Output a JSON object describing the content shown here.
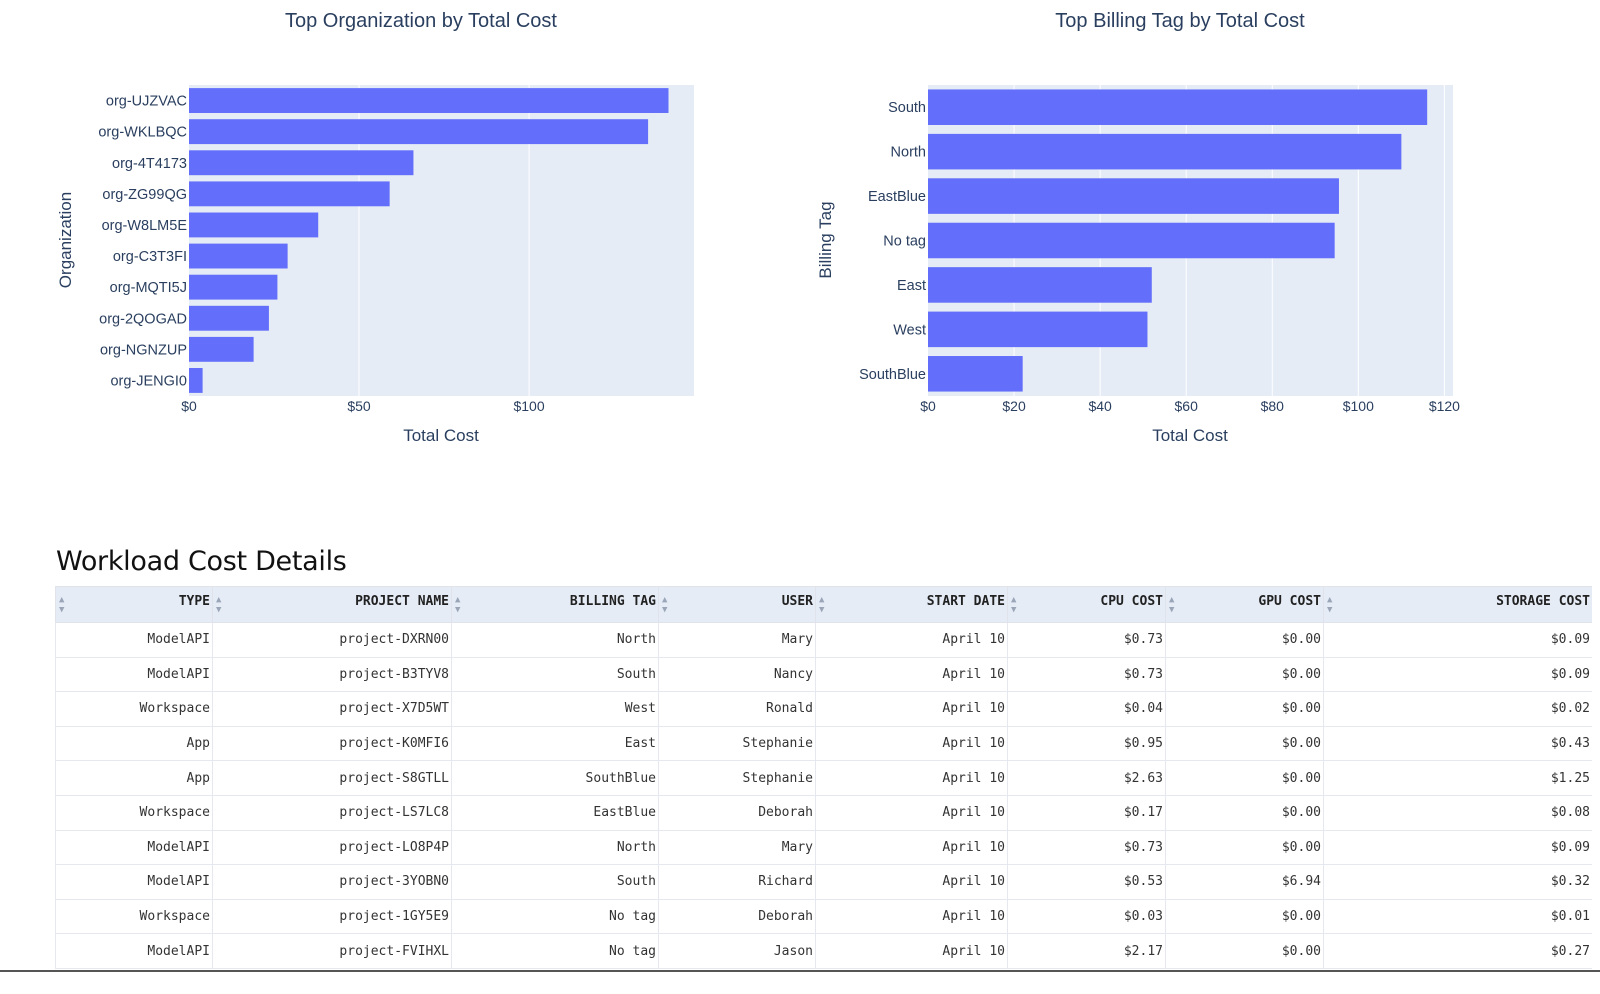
{
  "charts": {
    "org": {
      "title": "Top Organization by Total Cost",
      "xlabel": "Total Cost",
      "ylabel": "Organization"
    },
    "tag": {
      "title": "Top Billing Tag by Total Cost",
      "xlabel": "Total Cost",
      "ylabel": "Billing Tag"
    }
  },
  "chart_data": [
    {
      "type": "bar",
      "orientation": "horizontal",
      "title": "Top Organization by Total Cost",
      "xlabel": "Total Cost",
      "ylabel": "Organization",
      "categories": [
        "org-UJZVAC",
        "org-WKLBQC",
        "org-4T4173",
        "org-ZG99QG",
        "org-W8LM5E",
        "org-C3T3FI",
        "org-MQTI5J",
        "org-2QOGAD",
        "org-NGNZUP",
        "org-JENGI0"
      ],
      "values": [
        141,
        135,
        66,
        59,
        38,
        29,
        26,
        23.5,
        19,
        4
      ],
      "xticks": [
        0,
        50,
        100
      ],
      "xtick_labels": [
        "$0",
        "$50",
        "$100"
      ],
      "xlim": [
        0,
        148.5
      ],
      "bar_color": "#636efa",
      "plot_bg": "#e5ecf6"
    },
    {
      "type": "bar",
      "orientation": "horizontal",
      "title": "Top Billing Tag by Total Cost",
      "xlabel": "Total Cost",
      "ylabel": "Billing Tag",
      "categories": [
        "South",
        "North",
        "EastBlue",
        "No tag",
        "East",
        "West",
        "SouthBlue"
      ],
      "values": [
        116,
        110,
        95.5,
        94.5,
        52,
        51,
        22
      ],
      "xticks": [
        0,
        20,
        40,
        60,
        80,
        100,
        120
      ],
      "xtick_labels": [
        "$0",
        "$20",
        "$40",
        "$60",
        "$80",
        "$100",
        "$120"
      ],
      "xlim": [
        0,
        122
      ],
      "bar_color": "#636efa",
      "plot_bg": "#e5ecf6"
    }
  ],
  "table": {
    "title": "Workload Cost Details",
    "columns": [
      "",
      "TYPE",
      "PROJECT NAME",
      "BILLING TAG",
      "USER",
      "START DATE",
      "CPU COST",
      "GPU COST",
      "STORAGE COST"
    ],
    "rows": [
      [
        "",
        "ModelAPI",
        "project-DXRN00",
        "North",
        "Mary",
        "April 10",
        "$0.73",
        "$0.00",
        "$0.09"
      ],
      [
        "",
        "ModelAPI",
        "project-B3TYV8",
        "South",
        "Nancy",
        "April 10",
        "$0.73",
        "$0.00",
        "$0.09"
      ],
      [
        "",
        "Workspace",
        "project-X7D5WT",
        "West",
        "Ronald",
        "April 10",
        "$0.04",
        "$0.00",
        "$0.02"
      ],
      [
        "",
        "App",
        "project-K0MFI6",
        "East",
        "Stephanie",
        "April 10",
        "$0.95",
        "$0.00",
        "$0.43"
      ],
      [
        "",
        "App",
        "project-S8GTLL",
        "SouthBlue",
        "Stephanie",
        "April 10",
        "$2.63",
        "$0.00",
        "$1.25"
      ],
      [
        "",
        "Workspace",
        "project-LS7LC8",
        "EastBlue",
        "Deborah",
        "April 10",
        "$0.17",
        "$0.00",
        "$0.08"
      ],
      [
        "",
        "ModelAPI",
        "project-LO8P4P",
        "North",
        "Mary",
        "April 10",
        "$0.73",
        "$0.00",
        "$0.09"
      ],
      [
        "",
        "ModelAPI",
        "project-3YOBN0",
        "South",
        "Richard",
        "April 10",
        "$0.53",
        "$6.94",
        "$0.32"
      ],
      [
        "",
        "Workspace",
        "project-1GY5E9",
        "No tag",
        "Deborah",
        "April 10",
        "$0.03",
        "$0.00",
        "$0.01"
      ],
      [
        "",
        "ModelAPI",
        "project-FVIHXL",
        "No tag",
        "Jason",
        "April 10",
        "$2.17",
        "$0.00",
        "$0.27"
      ]
    ]
  }
}
